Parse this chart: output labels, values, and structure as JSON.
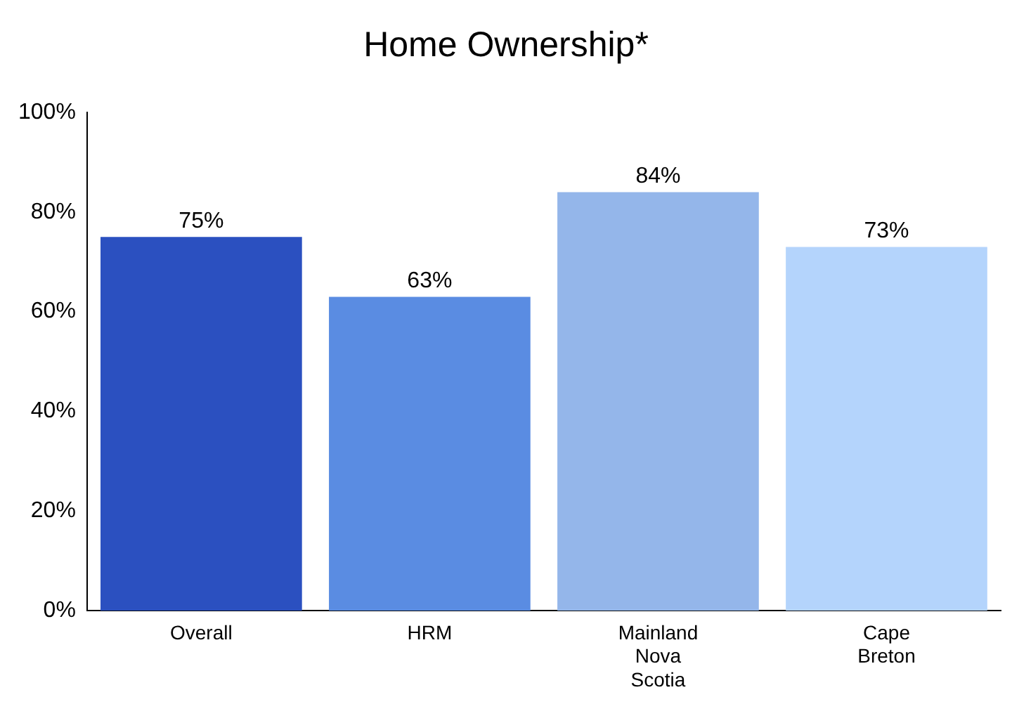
{
  "chart_data": {
    "type": "bar",
    "title": "Home Ownership*",
    "categories": [
      "Overall",
      "HRM",
      "Mainland Nova Scotia",
      "Cape Breton"
    ],
    "values": [
      75,
      63,
      84,
      73
    ],
    "value_labels": [
      "75%",
      "63%",
      "84%",
      "73%"
    ],
    "colors": [
      "#2b50c0",
      "#5a8ce2",
      "#94b6ea",
      "#b4d4fc"
    ],
    "ylim": [
      0,
      100
    ],
    "yticks": [
      {
        "value": 0,
        "label": "0%"
      },
      {
        "value": 20,
        "label": "20%"
      },
      {
        "value": 40,
        "label": "40%"
      },
      {
        "value": 60,
        "label": "60%"
      },
      {
        "value": 80,
        "label": "80%"
      },
      {
        "value": 100,
        "label": "100%"
      }
    ],
    "grid": false,
    "legend": false
  }
}
